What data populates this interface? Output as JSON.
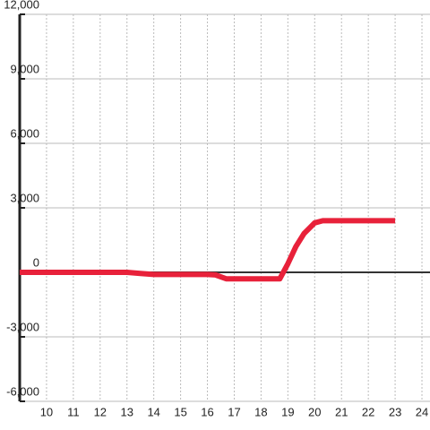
{
  "chart_data": {
    "type": "line",
    "x": [
      9,
      10,
      11,
      12,
      13,
      13.5,
      14,
      15,
      16,
      16.3,
      16.7,
      17,
      18,
      18.7,
      19,
      19.3,
      19.6,
      20,
      20.3,
      21,
      22,
      23
    ],
    "series": [
      {
        "color": "#e8213a",
        "values": [
          0,
          0,
          0,
          0,
          0,
          -50,
          -100,
          -100,
          -100,
          -120,
          -300,
          -300,
          -300,
          -300,
          400,
          1200,
          1800,
          2300,
          2400,
          2400,
          2400,
          2400
        ]
      }
    ],
    "xlim": [
      9,
      24.3
    ],
    "xticks": [
      10,
      11,
      12,
      13,
      14,
      15,
      16,
      17,
      18,
      19,
      20,
      21,
      22,
      23,
      24
    ],
    "ylim": [
      -6000,
      12000
    ],
    "yticks": [
      {
        "value": -6000,
        "label": "-6,000"
      },
      {
        "value": -3000,
        "label": "-3,000"
      },
      0,
      {
        "value": 3000,
        "label": "3,000"
      },
      {
        "value": 6000,
        "label": "6,000"
      },
      {
        "value": 9000,
        "label": "9,000"
      },
      {
        "value": 12000,
        "label": "12,000"
      }
    ],
    "grid": true
  }
}
